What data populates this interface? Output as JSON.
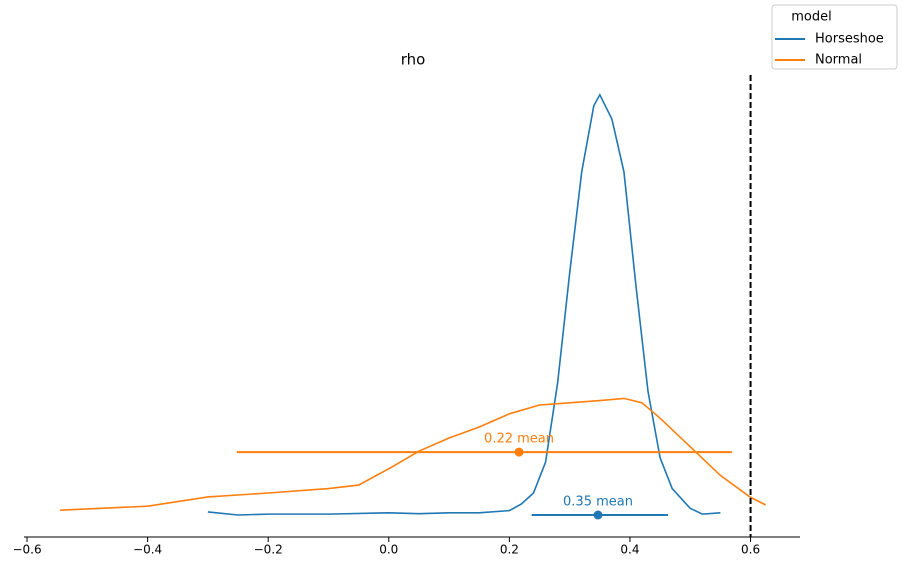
{
  "chart_data": {
    "type": "density",
    "title": "rho",
    "xlim": [
      -0.605,
      0.682
    ],
    "ylim": [
      -0.5,
      10
    ],
    "xticks": [
      {
        "value": -0.6,
        "label": "−0.6"
      },
      {
        "value": -0.4,
        "label": "−0.4"
      },
      {
        "value": -0.2,
        "label": "−0.2"
      },
      {
        "value": 0,
        "label": "0.0"
      },
      0.2,
      0.4,
      0.6
    ],
    "ref_line": 0.6,
    "legend": {
      "title": "model",
      "position": "upper right"
    },
    "series": [
      {
        "name": "Horseshoe",
        "color": "#1f77b4",
        "x": [
          -0.3,
          -0.25,
          -0.2,
          -0.1,
          0.0,
          0.05,
          0.1,
          0.15,
          0.2,
          0.22,
          0.24,
          0.26,
          0.28,
          0.3,
          0.32,
          0.34,
          0.35,
          0.37,
          0.39,
          0.41,
          0.43,
          0.45,
          0.47,
          0.5,
          0.52,
          0.55
        ],
        "values": [
          0.07,
          0.0,
          0.02,
          0.02,
          0.05,
          0.03,
          0.05,
          0.05,
          0.1,
          0.25,
          0.5,
          1.2,
          3.0,
          5.5,
          7.8,
          9.3,
          9.55,
          9.0,
          7.8,
          5.2,
          2.8,
          1.3,
          0.6,
          0.15,
          0.02,
          0.05
        ],
        "hdi": [
          0.237,
          0.463
        ],
        "hdi_level": 0,
        "mean": 0.347,
        "mean_label": "0.35 mean"
      },
      {
        "name": "Normal",
        "color": "#ff7f0e",
        "x": [
          -0.545,
          -0.4,
          -0.3,
          -0.2,
          -0.1,
          -0.05,
          0.0,
          0.05,
          0.1,
          0.15,
          0.2,
          0.25,
          0.3,
          0.35,
          0.39,
          0.42,
          0.45,
          0.5,
          0.55,
          0.6,
          0.625
        ],
        "values": [
          0.11,
          0.2,
          0.41,
          0.5,
          0.6,
          0.68,
          1.05,
          1.45,
          1.75,
          2.0,
          2.3,
          2.5,
          2.55,
          2.6,
          2.65,
          2.55,
          2.2,
          1.55,
          0.9,
          0.4,
          0.23
        ],
        "hdi": [
          -0.252,
          0.569
        ],
        "hdi_level": 1.43,
        "mean": 0.216,
        "mean_label": "0.22 mean"
      }
    ]
  }
}
